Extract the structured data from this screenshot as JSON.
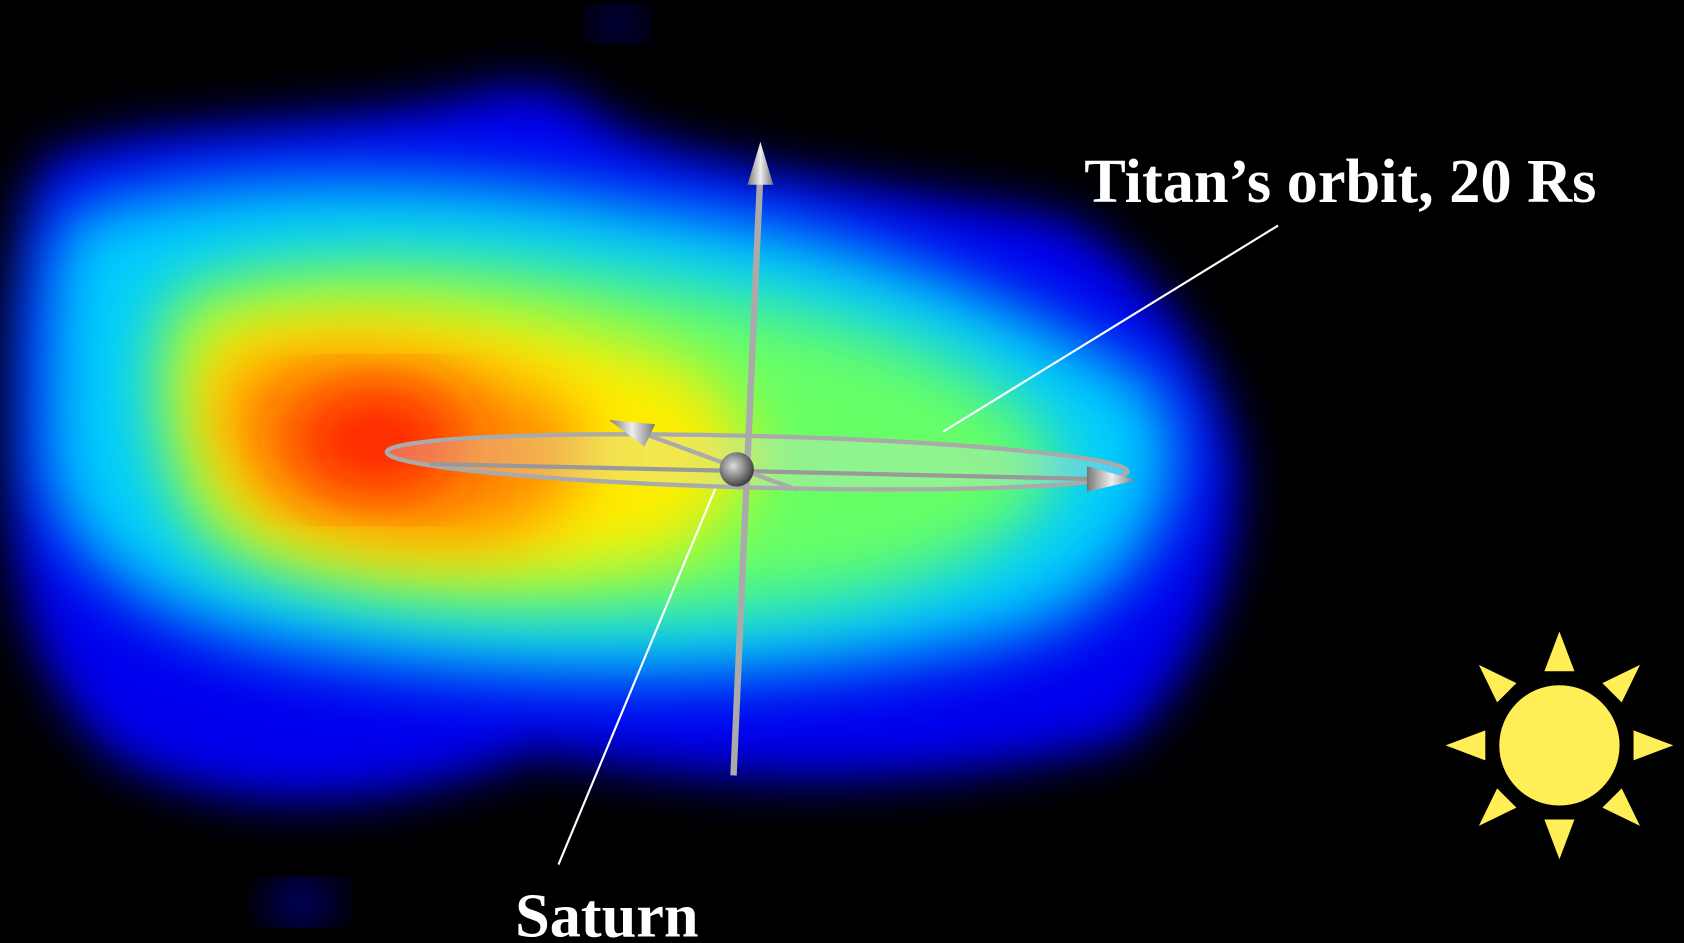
{
  "labels": {
    "orbit": "Titan’s orbit, 20 Rs",
    "planet": "Saturn"
  }
}
